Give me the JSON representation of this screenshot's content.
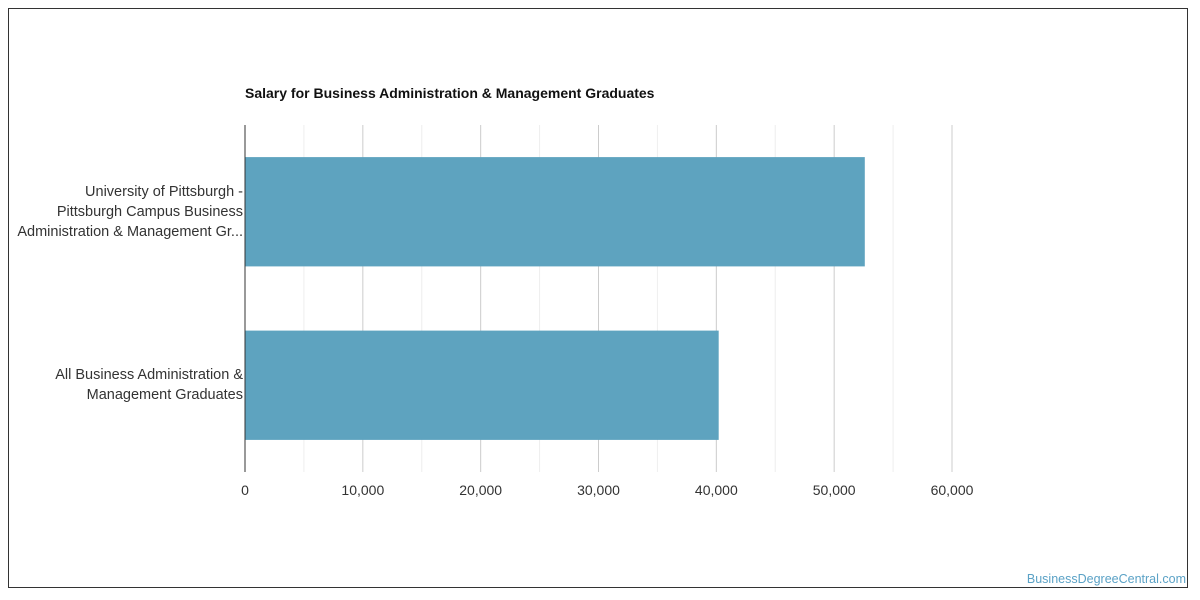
{
  "chart_data": {
    "type": "bar",
    "orientation": "horizontal",
    "title": "Salary for Business Administration & Management Graduates",
    "categories": [
      "University of Pittsburgh - Pittsburgh Campus Business Administration & Management Gr...",
      "All Business Administration & Management Graduates"
    ],
    "category_lines": [
      [
        "University of Pittsburgh -",
        "Pittsburgh Campus Business",
        "Administration & Management Gr..."
      ],
      [
        "All Business Administration &",
        "Management Graduates"
      ]
    ],
    "values": [
      52600,
      40200
    ],
    "xlim": [
      0,
      60000
    ],
    "ticks": [
      "0",
      "10,000",
      "20,000",
      "30,000",
      "40,000",
      "50,000",
      "60,000"
    ],
    "tick_values": [
      0,
      10000,
      20000,
      30000,
      40000,
      50000,
      60000
    ],
    "grid": true,
    "bar_color": "#5ea3bf"
  },
  "credit": "BusinessDegreeCentral.com"
}
